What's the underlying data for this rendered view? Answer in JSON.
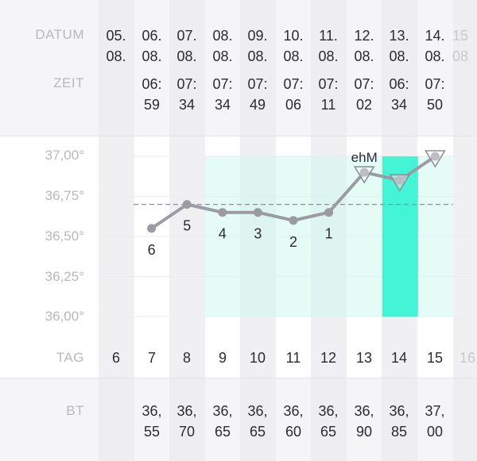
{
  "header": {
    "datum_label": "DATUM",
    "zeit_label": "ZEIT",
    "tag_label": "TAG",
    "bt_label": "BT"
  },
  "columns": [
    {
      "datum": "05.\n08.",
      "zeit": "",
      "tag": "6",
      "bt": ""
    },
    {
      "datum": "06.\n08.",
      "zeit": "06:\n59",
      "tag": "7",
      "bt": "36,\n55"
    },
    {
      "datum": "07.\n08.",
      "zeit": "07:\n34",
      "tag": "8",
      "bt": "36,\n70"
    },
    {
      "datum": "08.\n08.",
      "zeit": "07:\n34",
      "tag": "9",
      "bt": "36,\n65"
    },
    {
      "datum": "09.\n08.",
      "zeit": "07:\n49",
      "tag": "10",
      "bt": "36,\n65"
    },
    {
      "datum": "10.\n08.",
      "zeit": "07:\n06",
      "tag": "11",
      "bt": "36,\n60"
    },
    {
      "datum": "11.\n08.",
      "zeit": "07:\n11",
      "tag": "12",
      "bt": "36,\n65"
    },
    {
      "datum": "12.\n08.",
      "zeit": "07:\n02",
      "tag": "13",
      "bt": "36,\n90"
    },
    {
      "datum": "13.\n08.",
      "zeit": "06:\n34",
      "tag": "14",
      "bt": "36,\n85"
    },
    {
      "datum": "14.\n08.",
      "zeit": "07:\n50",
      "tag": "15",
      "bt": "37,\n00"
    },
    {
      "datum": "15\n08",
      "zeit": "",
      "tag": "16",
      "bt": ""
    }
  ],
  "chart_data": {
    "type": "line",
    "x": [
      "06.08.",
      "07.08.",
      "08.08.",
      "09.08.",
      "10.08.",
      "11.08.",
      "12.08.",
      "13.08.",
      "14.08."
    ],
    "values": [
      36.55,
      36.7,
      36.65,
      36.65,
      36.6,
      36.65,
      36.9,
      36.85,
      37.0
    ],
    "ylim": [
      36.0,
      37.0
    ],
    "yticks": [
      "37,00°",
      "36,75°",
      "36,50°",
      "36,25°",
      "36,00°"
    ],
    "coverline": 36.7,
    "point_labels": [
      "6",
      "5",
      "4",
      "3",
      "2",
      "1",
      "",
      "",
      ""
    ],
    "annotation": "ehM",
    "triangle_days": [
      "12.08.",
      "13.08.",
      "14.08."
    ],
    "shaded_range": [
      "08.08.",
      "12.08."
    ],
    "highlight_day": "13.08.",
    "colors": {
      "line": "#9a9ba3",
      "shade": "#cff7ef",
      "highlight": "#44f5d5",
      "coverline": "#8d909a"
    },
    "grid": true
  }
}
